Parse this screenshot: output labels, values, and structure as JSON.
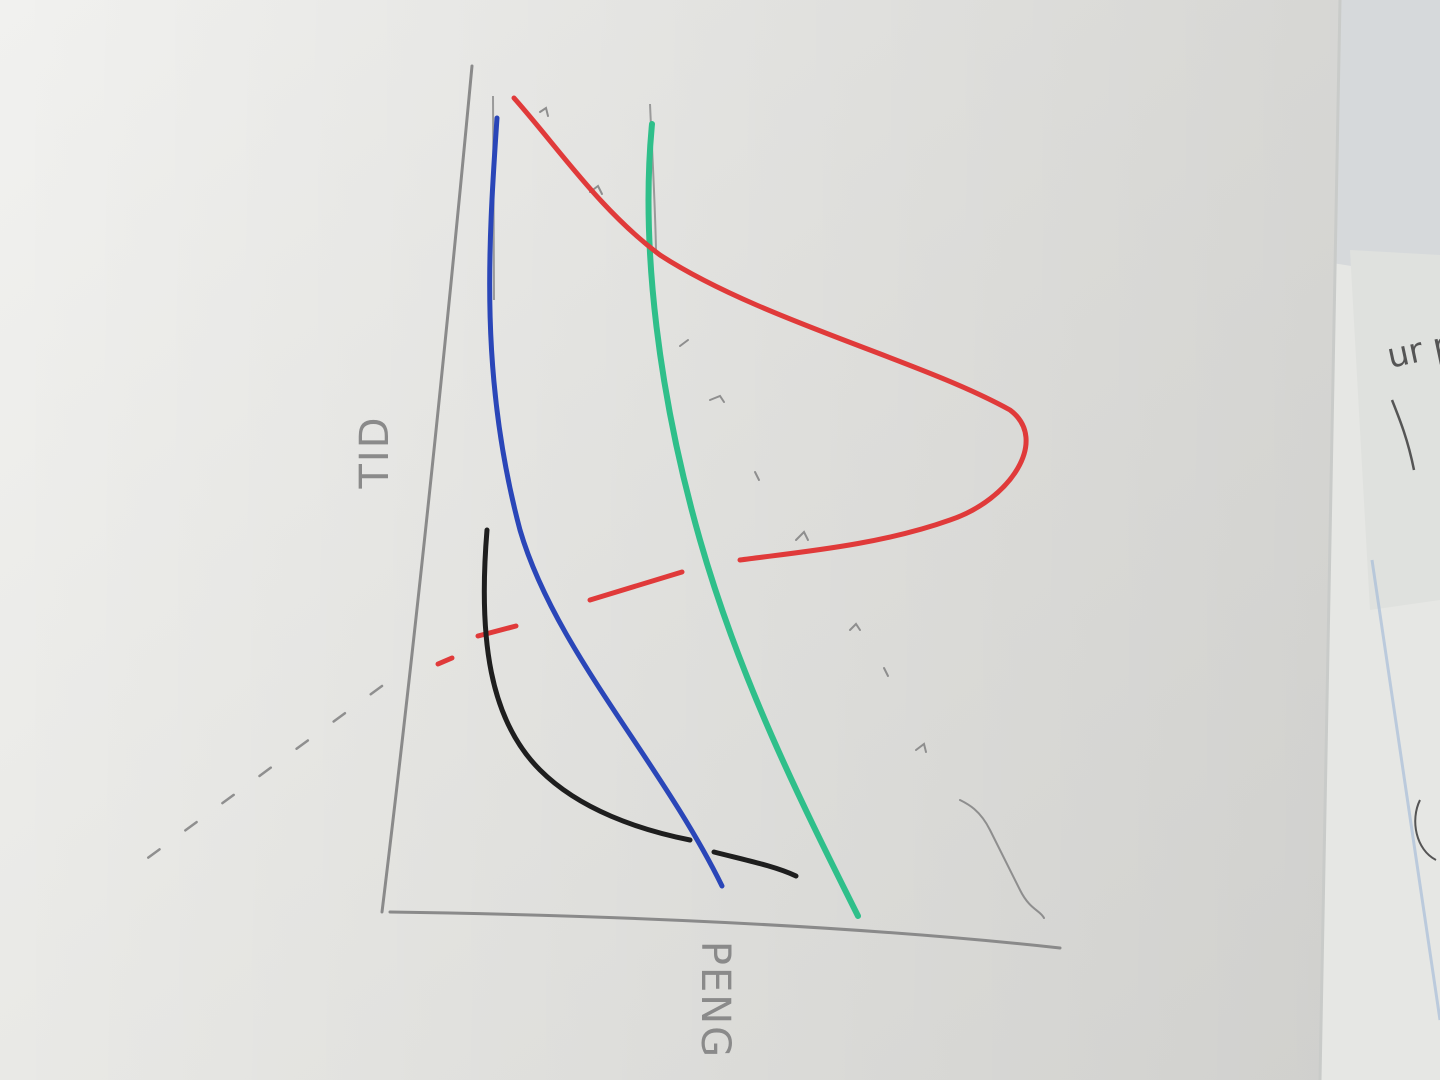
{
  "photo": {
    "subject": "hand-drawn-graph-sketch",
    "paper_color": "#ebebe8",
    "background_color": "#d9dcde"
  },
  "labels": {
    "vertical_axis": "TID",
    "horizontal_axis": "PENG",
    "edge_scrap": "ur pr"
  },
  "curves": [
    {
      "name": "blue-curve",
      "color": "#2a46b8"
    },
    {
      "name": "green-curve",
      "color": "#2fbf8a"
    },
    {
      "name": "red-curve",
      "color": "#e03a3a"
    },
    {
      "name": "black-curve",
      "color": "#1e1e1e"
    }
  ],
  "axis_color": "#8a8a8a"
}
